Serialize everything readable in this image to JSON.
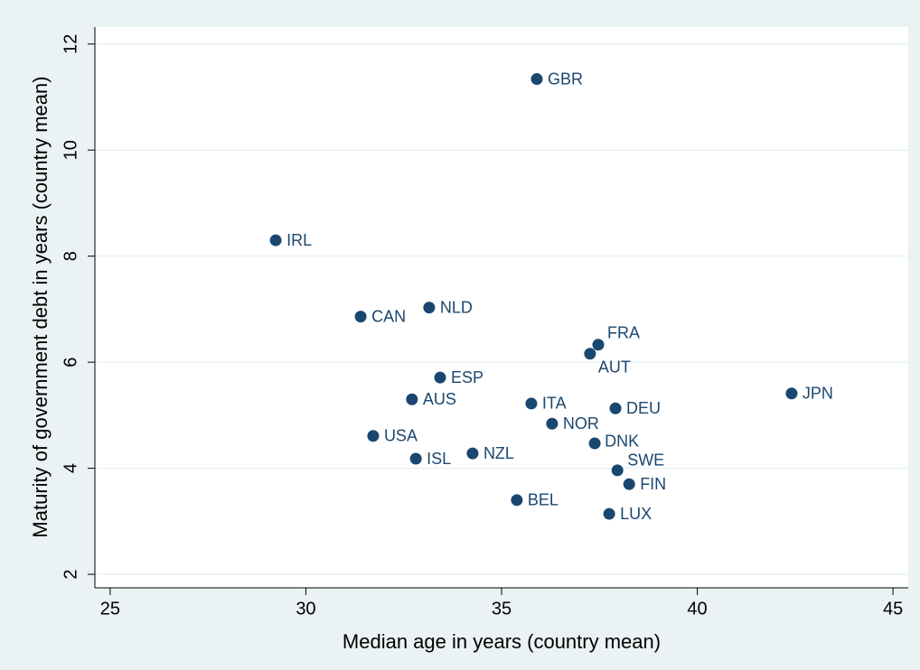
{
  "chart_data": {
    "type": "scatter",
    "x_label": "Median age in years (country mean)",
    "y_label": "Maturity of government debt in years (country mean)",
    "color": "#1a476f",
    "grid": true,
    "labels": [
      "GBR",
      "IRL",
      "CAN",
      "NLD",
      "FRA",
      "AUT",
      "ESP",
      "AUS",
      "ITA",
      "DEU",
      "JPN",
      "NOR",
      "USA",
      "DNK",
      "NZL",
      "ISL",
      "SWE",
      "FIN",
      "BEL",
      "LUX"
    ],
    "x": [
      35.9,
      29.23,
      31.4,
      33.15,
      37.47,
      37.26,
      33.43,
      32.71,
      35.76,
      37.91,
      42.41,
      36.29,
      31.72,
      37.38,
      34.26,
      32.81,
      37.96,
      38.26,
      35.39,
      37.75
    ],
    "y": [
      11.34,
      8.3,
      6.86,
      7.03,
      6.33,
      6.16,
      5.71,
      5.3,
      5.22,
      5.13,
      5.41,
      4.84,
      4.61,
      4.47,
      4.28,
      4.18,
      3.96,
      3.7,
      3.4,
      3.14
    ],
    "xlim": [
      24.61,
      45.39
    ],
    "ylim": [
      1.745,
      12.32
    ],
    "xticks": [
      25,
      30,
      35,
      40,
      45
    ],
    "yticks": [
      2,
      4,
      6,
      8,
      10,
      12
    ]
  }
}
